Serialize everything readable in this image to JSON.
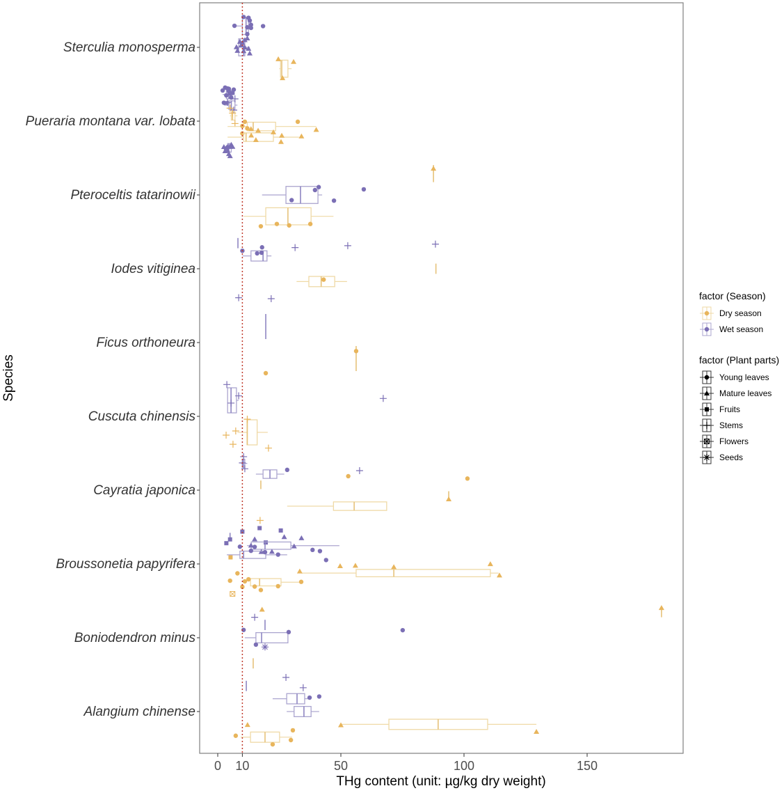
{
  "colors": {
    "dry": "#E8B55C",
    "wet": "#7B6FB5",
    "dry_box": "#EFD9A6",
    "wet_box": "#ABA5CF",
    "reference_line": "#C0392B"
  },
  "chart_data": {
    "type": "boxplot-with-points",
    "orientation": "horizontal",
    "xlabel": "THg content (unit: µg/kg dry weight)",
    "ylabel": "Species",
    "xlim": [
      -7,
      190
    ],
    "xticks": [
      0,
      10,
      50,
      100,
      150
    ],
    "reference_line": {
      "x": 10,
      "style": "dotted"
    },
    "grid": false,
    "legend_placement": "right",
    "legends": [
      {
        "title": "factor (Season)",
        "entries": [
          {
            "label": "Dry season",
            "key": "dry"
          },
          {
            "label": "Wet season",
            "key": "wet"
          }
        ]
      },
      {
        "title": "factor (Plant parts)",
        "entries": [
          {
            "label": "Young leaves",
            "key": "young"
          },
          {
            "label": "Mature leaves",
            "key": "mature"
          },
          {
            "label": "Fruits",
            "key": "fruits"
          },
          {
            "label": "Stems",
            "key": "stems"
          },
          {
            "label": "Flowers",
            "key": "flowers"
          },
          {
            "label": "Seeds",
            "key": "seeds"
          }
        ]
      }
    ],
    "species": [
      {
        "name": "Sterculia monosperma",
        "groups": [
          {
            "season": "wet",
            "part": "young",
            "box": [
              7,
              10,
              11.5,
              12.5,
              13.5
            ],
            "points": [
              6.8,
              12,
              12.5,
              13,
              13.5,
              18.4,
              10.5,
              12,
              13.5
            ]
          },
          {
            "season": "wet",
            "part": "mature",
            "box": [
              7.5,
              8.5,
              10.5,
              11,
              13
            ],
            "points": [
              9.5,
              10,
              13,
              8,
              12,
              11,
              9,
              10.5,
              11,
              12.5,
              7.6
            ]
          },
          {
            "season": "dry",
            "part": "mature",
            "box": [
              25,
              25.5,
              26,
              28.5,
              30
            ],
            "points": [
              30.8,
              24.6,
              26.3
            ]
          }
        ]
      },
      {
        "name": "Pueraria montana var. lobata",
        "groups": [
          {
            "season": "wet",
            "part": "young",
            "box": [
              2,
              3.5,
              4.5,
              5.5,
              7
            ],
            "points": [
              4,
              3,
              5,
              2.5,
              4.5,
              6,
              3.5,
              5.5,
              2,
              4,
              3,
              5,
              6.5,
              3.5,
              4.5
            ]
          },
          {
            "season": "wet",
            "part": "stems",
            "box": [
              3,
              4.5,
              5.5,
              7,
              8
            ],
            "points": [
              7,
              6.5,
              4
            ]
          },
          {
            "season": "dry",
            "part": "stems",
            "box": [
              5,
              5.5,
              6,
              7,
              8
            ],
            "points": [
              6,
              5,
              7
            ]
          },
          {
            "season": "dry",
            "part": "young",
            "box": [
              4,
              12,
              14.4,
              23.5,
              40
            ],
            "points": [
              32.5,
              10,
              10,
              11,
              12
            ]
          },
          {
            "season": "dry",
            "part": "mature",
            "box": [
              4,
              10.5,
              11.5,
              22.6,
              33
            ],
            "points": [
              13.6,
              25.7,
              15.5,
              16.4,
              22.6,
              34,
              40,
              13.5,
              26
            ]
          },
          {
            "season": "wet",
            "part": "mature",
            "box": [
              2,
              4,
              4.5,
              5.5,
              7
            ],
            "points": [
              3,
              4,
              5,
              5.5,
              4,
              3.5,
              6,
              4.5,
              2.5,
              5
            ]
          }
        ]
      },
      {
        "name": "Pteroceltis tatarinowii",
        "groups": [
          {
            "season": "dry",
            "part": "mature",
            "box": [
              87.6,
              87.6,
              87.6,
              87.6,
              87.6
            ],
            "points": [
              87.6
            ]
          },
          {
            "season": "wet",
            "part": "young",
            "box": [
              18,
              27.7,
              33.6,
              40.7,
              42.4
            ],
            "points": [
              59.3,
              30,
              41,
              39.5,
              47.2
            ]
          },
          {
            "season": "dry",
            "part": "young",
            "box": [
              10.5,
              19.5,
              28.5,
              37.9,
              47
            ],
            "points": [
              24,
              17.5,
              29,
              37.6
            ]
          }
        ]
      },
      {
        "name": "Iodes vitiginea",
        "groups": [
          {
            "season": "wet",
            "part": "stems",
            "box": [
              8.2,
              8.2,
              8.2,
              8.2,
              8.2
            ],
            "points": [
              31.4,
              52.8,
              88.4
            ]
          },
          {
            "season": "wet",
            "part": "young",
            "box": [
              10,
              13.5,
              18.4,
              20,
              21.8
            ],
            "points": [
              18,
              17.8,
              16,
              10
            ]
          },
          {
            "season": "dry",
            "part": "mature",
            "box": [
              88.6,
              88.6,
              88.6,
              88.6,
              88.6
            ],
            "points": []
          },
          {
            "season": "dry",
            "part": "young",
            "box": [
              32,
              37,
              42,
              47.5,
              52.5
            ],
            "points": [
              43
            ]
          },
          {
            "season": "wet",
            "part": "stems",
            "box": null,
            "points": [
              8.5,
              21.7
            ]
          }
        ]
      },
      {
        "name": "Ficus orthoneura",
        "groups": [
          {
            "season": "wet",
            "part": "young",
            "box": [
              19.5,
              19.5,
              19.5,
              19.5,
              19.5
            ],
            "points": []
          },
          {
            "season": "dry",
            "part": "young",
            "box": [
              56.2,
              56.2,
              56.2,
              56.2,
              56.2
            ],
            "points": [
              56.2,
              19.5
            ]
          }
        ]
      },
      {
        "name": "Cuscuta chinensis",
        "groups": [
          {
            "season": "wet",
            "part": "stems",
            "box": [
              4,
              4,
              5.4,
              7.6,
              8.5
            ],
            "points": [
              3.7,
              8.5,
              5.4,
              67.2
            ]
          },
          {
            "season": "dry",
            "part": "stems",
            "box": [
              8,
              11.9,
              12,
              16,
              20.3
            ],
            "points": [
              12,
              20.6,
              7.3,
              6.2,
              3.4
            ]
          }
        ]
      },
      {
        "name": "Cayratia japonica",
        "groups": [
          {
            "season": "wet",
            "part": "stems",
            "box": [
              9.5,
              10,
              10.5,
              11,
              12
            ],
            "points": [
              10,
              10.5,
              11,
              57.6
            ]
          },
          {
            "season": "wet",
            "part": "young",
            "box": [
              15.5,
              18.4,
              21.2,
              24,
              27
            ],
            "points": [
              28.2
            ]
          },
          {
            "season": "dry",
            "part": "young",
            "box": [
              17.5,
              17.5,
              17.5,
              17.5,
              17.5
            ],
            "points": [
              53,
              101.4
            ]
          },
          {
            "season": "dry",
            "part": "mature",
            "box": [
              93.8,
              93.8,
              93.8,
              93.8,
              93.8
            ],
            "points": [
              93.8
            ]
          },
          {
            "season": "dry",
            "part": "young",
            "box": [
              28.2,
              47,
              55.4,
              68.6,
              68.6
            ],
            "points": []
          },
          {
            "season": "dry",
            "part": "stems",
            "box": null,
            "points": [
              17.2
            ]
          }
        ]
      },
      {
        "name": "Broussonetia papyrifera",
        "groups": [
          {
            "season": "wet",
            "part": "fruits",
            "box": [
              5,
              5,
              5,
              5,
              5
            ],
            "points": [
              5,
              3.5,
              10,
              19.5,
              25.6,
              17
            ]
          },
          {
            "season": "wet",
            "part": "mature",
            "box": [
              11.9,
              13.6,
              19.2,
              29.7,
              49.4
            ],
            "points": [
              34,
              27,
              31,
              22,
              17.7,
              15,
              13.5
            ]
          },
          {
            "season": "wet",
            "part": "young",
            "box": [
              3.7,
              9,
              10.5,
              19.5,
              28.2
            ],
            "points": [
              9,
              13.5,
              24.5,
              15,
              19.2,
              38.5,
              41.5,
              44
            ]
          },
          {
            "season": "dry",
            "part": "fruits",
            "box": null,
            "points": [
              5.2
            ]
          },
          {
            "season": "dry",
            "part": "mature",
            "box": [
              34,
              56.2,
              71.5,
              110.7,
              114
            ],
            "points": [
              71.5,
              110.7,
              114.4,
              55.9,
              33.3,
              49.7
            ]
          },
          {
            "season": "dry",
            "part": "young",
            "box": [
              13.3,
              13.3,
              17,
              25.7,
              33.9
            ],
            "points": [
              33.9,
              5,
              8,
              10,
              11,
              15,
              12.5,
              17.5,
              24.5
            ]
          },
          {
            "season": "dry",
            "part": "flowers",
            "box": null,
            "points": [
              6
            ]
          }
        ]
      },
      {
        "name": "Boniodendron minus",
        "groups": [
          {
            "season": "dry",
            "part": "mature",
            "box": [
              180.2,
              180.2,
              180.2,
              180.2,
              180.2
            ],
            "points": [
              180.2,
              18
            ]
          },
          {
            "season": "wet",
            "part": "stems",
            "box": [
              19.2,
              19.2,
              19.2,
              19.2,
              19.2
            ],
            "points": [
              15
            ]
          },
          {
            "season": "wet",
            "part": "young",
            "box": [
              11,
              15.5,
              17.8,
              28.5,
              28.5
            ],
            "points": [
              15.5,
              75.1,
              10.5,
              28.8
            ]
          },
          {
            "season": "wet",
            "part": "seeds",
            "box": null,
            "points": [
              19.2
            ]
          },
          {
            "season": "dry",
            "part": "stems",
            "box": [
              14.4,
              14.4,
              14.4,
              14.4,
              14.4
            ],
            "points": []
          }
        ]
      },
      {
        "name": "Alangium chinense",
        "groups": [
          {
            "season": "wet",
            "part": "stems",
            "box": [
              11.6,
              11.6,
              11.6,
              11.6,
              11.6
            ],
            "points": [
              27.7,
              34.7
            ]
          },
          {
            "season": "wet",
            "part": "young",
            "box": [
              22.3,
              28,
              32.2,
              35.3,
              36.7
            ],
            "points": [
              37.3,
              41.2
            ]
          },
          {
            "season": "wet",
            "part": "mature",
            "box": [
              28,
              31,
              35,
              37.9,
              41.2
            ],
            "points": []
          },
          {
            "season": "dry",
            "part": "mature",
            "box": [
              50,
              69.5,
              89.5,
              109.6,
              129.4
            ],
            "points": [
              50,
              129.4,
              12.1
            ]
          },
          {
            "season": "dry",
            "part": "young",
            "box": [
              9.3,
              13.3,
              19.2,
              25.1,
              30.2
            ],
            "points": [
              7.3,
              30.5,
              22.3,
              29.7
            ]
          }
        ]
      }
    ]
  }
}
